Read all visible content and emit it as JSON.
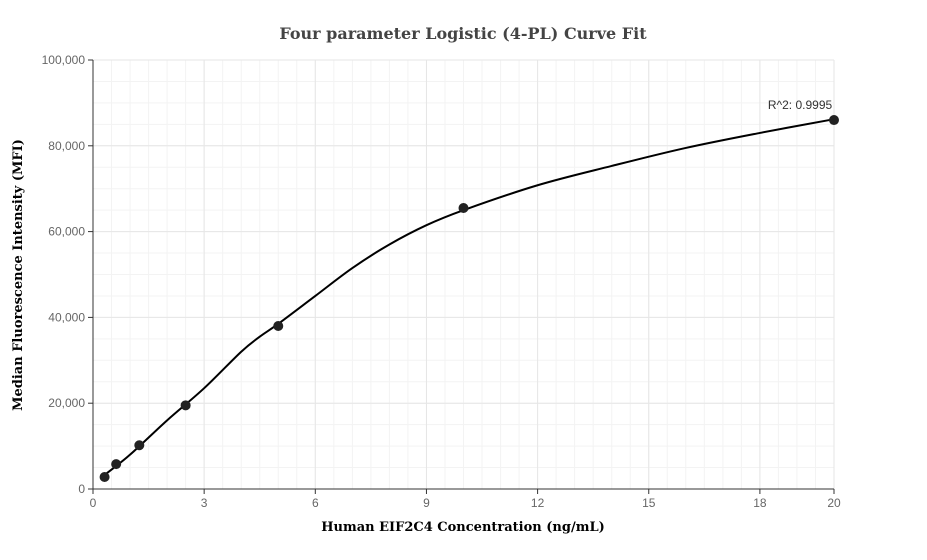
{
  "chart_data": {
    "type": "scatter",
    "title": "Four parameter Logistic (4-PL) Curve Fit",
    "xlabel": "Human EIF2C4 Concentration (ng/mL)",
    "ylabel": "Median Fluorescence Intensity (MFI)",
    "xlim": [
      0,
      20
    ],
    "ylim": [
      0,
      100000
    ],
    "x_ticks": [
      0,
      3,
      6,
      9,
      12,
      15,
      18,
      20
    ],
    "x_tick_labels": [
      "0",
      "3",
      "6",
      "9",
      "12",
      "15",
      "18",
      "20"
    ],
    "y_ticks": [
      0,
      20000,
      40000,
      60000,
      80000,
      100000
    ],
    "y_tick_labels": [
      "0",
      "20,000",
      "40,000",
      "60,000",
      "80,000",
      "100,000"
    ],
    "grid": true,
    "series": [
      {
        "kind": "points",
        "x": [
          0.3125,
          0.625,
          1.25,
          2.5,
          5,
          10,
          20
        ],
        "y": [
          2800,
          5800,
          10200,
          19500,
          38000,
          65500,
          86000
        ]
      },
      {
        "kind": "fit-curve",
        "x": [
          0.3,
          1,
          2,
          3,
          4,
          4.5,
          5,
          6,
          7,
          8,
          9,
          10,
          12,
          14,
          16,
          18,
          20
        ],
        "y": [
          3200,
          8000,
          16000,
          23500,
          32000,
          35500,
          38500,
          45000,
          51500,
          57000,
          61500,
          65000,
          70800,
          75300,
          79500,
          83000,
          86200
        ]
      }
    ],
    "annotations": [
      {
        "text": "R^2: 0.9995",
        "x": 20,
        "y": 86000
      }
    ],
    "colors": {
      "points": "#222222",
      "curve": "#000000",
      "grid": "#e6e6e6",
      "axis": "#333333"
    }
  }
}
